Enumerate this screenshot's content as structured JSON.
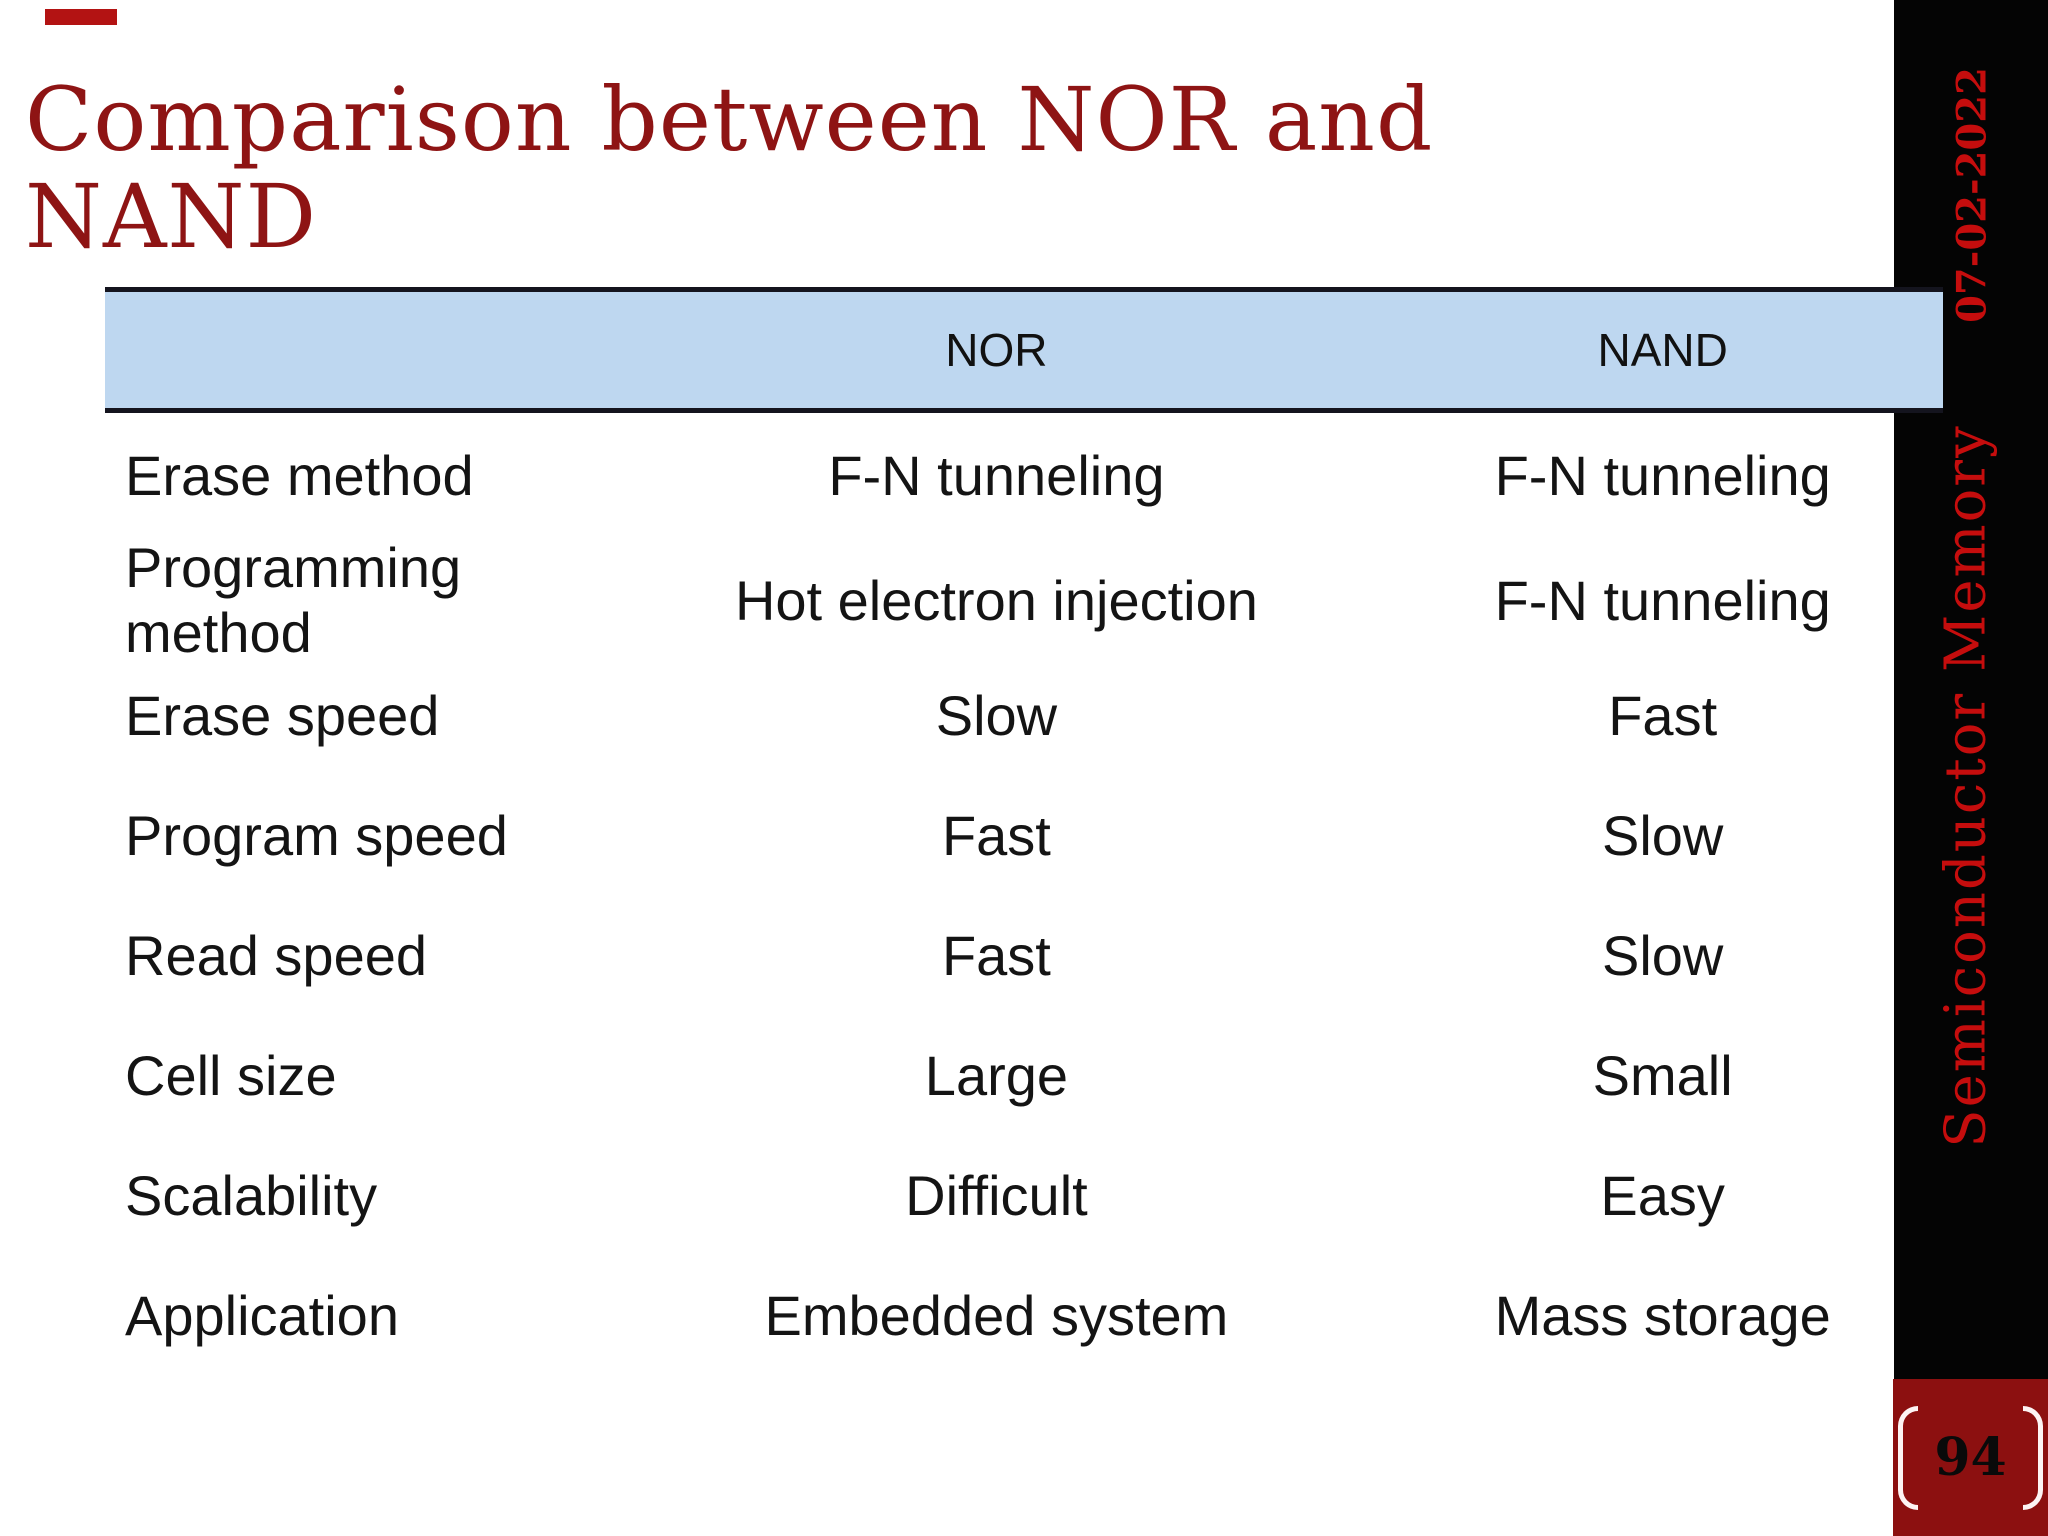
{
  "slide": {
    "title": "Comparison between NOR and NAND",
    "colors": {
      "title_red": "#8e1414",
      "accent_dash": "#b31313",
      "header_blue": "#bed7f0",
      "sidebar_black": "#040404",
      "sidebar_text_red": "#c50d0d",
      "page_box_maroon": "#8c1010"
    }
  },
  "table": {
    "columns": [
      "",
      "NOR",
      "NAND"
    ],
    "rows": [
      {
        "label": "Erase method",
        "nor": "F-N tunneling",
        "nand": "F-N tunneling"
      },
      {
        "label": "Programming method",
        "nor": "Hot electron injection",
        "nand": "F-N tunneling"
      },
      {
        "label": "Erase speed",
        "nor": "Slow",
        "nand": "Fast"
      },
      {
        "label": "Program speed",
        "nor": "Fast",
        "nand": "Slow"
      },
      {
        "label": "Read speed",
        "nor": "Fast",
        "nand": "Slow"
      },
      {
        "label": "Cell size",
        "nor": "Large",
        "nand": "Small"
      },
      {
        "label": "Scalability",
        "nor": "Difficult",
        "nand": "Easy"
      },
      {
        "label": "Application",
        "nor": "Embedded system",
        "nand": "Mass storage"
      }
    ]
  },
  "sidebar": {
    "date": "07-02-2022",
    "course": "Semiconductor Memory",
    "page_number": "94"
  }
}
